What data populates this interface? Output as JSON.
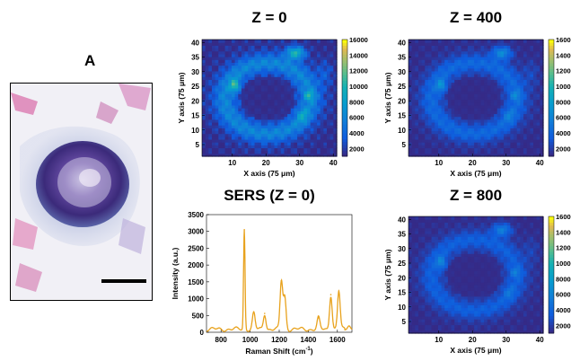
{
  "panel_label": "A",
  "chart_data": [
    {
      "type": "heatmap",
      "title": "Z = 0",
      "xlabel": "X axis (75 μm)",
      "ylabel": "Y axis (75 μm)",
      "xlim": [
        1,
        41
      ],
      "ylim": [
        1,
        41
      ],
      "xticks": [
        10,
        20,
        30,
        40
      ],
      "yticks": [
        5,
        10,
        15,
        20,
        25,
        30,
        35,
        40
      ],
      "colorbar": {
        "range": [
          1000,
          16000
        ],
        "ticks": [
          2000,
          4000,
          6000,
          8000,
          10000,
          12000,
          14000,
          16000
        ]
      },
      "intensity_scale": 1.0
    },
    {
      "type": "heatmap",
      "title": "Z = 400",
      "xlabel": "X axis (75 μm)",
      "ylabel": "Y axis (75 μm)",
      "xlim": [
        1,
        41
      ],
      "ylim": [
        1,
        41
      ],
      "xticks": [
        10,
        20,
        30,
        40
      ],
      "yticks": [
        5,
        10,
        15,
        20,
        25,
        30,
        35,
        40
      ],
      "colorbar": {
        "range": [
          1000,
          16000
        ],
        "ticks": [
          2000,
          4000,
          6000,
          8000,
          10000,
          12000,
          14000,
          16000
        ]
      },
      "intensity_scale": 0.6
    },
    {
      "type": "line",
      "title": "SERS (Z = 0)",
      "xlabel": "Raman Shift (cm",
      "xlabel_sup": "-1",
      "xlabel_end": ")",
      "ylabel": "Intensity (a.u.)",
      "xlim": [
        700,
        1700
      ],
      "ylim": [
        0,
        3500
      ],
      "xticks": [
        800,
        1000,
        1200,
        1400,
        1600
      ],
      "yticks": [
        0,
        500,
        1000,
        1500,
        2000,
        2500,
        3000,
        3500
      ],
      "color": "#E8A21D",
      "peaks": [
        {
          "x": 960,
          "y": 3050
        },
        {
          "x": 1025,
          "y": 580
        },
        {
          "x": 1100,
          "y": 560
        },
        {
          "x": 1215,
          "y": 1530
        },
        {
          "x": 1238,
          "y": 1050
        },
        {
          "x": 1470,
          "y": 430
        },
        {
          "x": 1555,
          "y": 1120
        },
        {
          "x": 1610,
          "y": 1230
        }
      ]
    },
    {
      "type": "heatmap",
      "title": "Z = 800",
      "xlabel": "X axis (75 μm)",
      "ylabel": "Y axis (75 μm)",
      "xlim": [
        1,
        41
      ],
      "ylim": [
        1,
        41
      ],
      "xticks": [
        10,
        20,
        30,
        40
      ],
      "yticks": [
        5,
        10,
        15,
        20,
        25,
        30,
        35,
        40
      ],
      "colorbar": {
        "range": [
          1000,
          16000
        ],
        "ticks": [
          2000,
          4000,
          6000,
          8000,
          10000,
          12000,
          14000,
          16000
        ]
      },
      "intensity_scale": 0.5
    }
  ]
}
